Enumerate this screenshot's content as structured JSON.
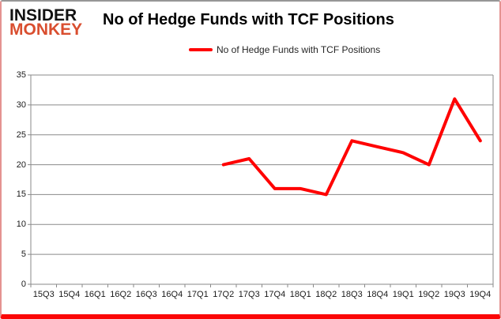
{
  "logo": {
    "line1": "INSIDER",
    "line2": "MONKEY",
    "line2_color": "#d94e2f"
  },
  "header": {
    "title": "No of Hedge Funds with TCF Positions"
  },
  "chart_data": {
    "type": "line",
    "title": "No of Hedge Funds with TCF Positions",
    "legend_label": "No of Hedge Funds with TCF Positions",
    "legend_position": "top",
    "categories": [
      "15Q3",
      "15Q4",
      "16Q1",
      "16Q2",
      "16Q3",
      "16Q4",
      "17Q1",
      "17Q2",
      "17Q3",
      "17Q4",
      "18Q1",
      "18Q2",
      "18Q3",
      "18Q4",
      "19Q1",
      "19Q2",
      "19Q3",
      "19Q4"
    ],
    "series": [
      {
        "name": "No of Hedge Funds with TCF Positions",
        "values": [
          null,
          null,
          null,
          null,
          null,
          null,
          null,
          20,
          21,
          16,
          16,
          15,
          24,
          23,
          22,
          20,
          31,
          24
        ]
      }
    ],
    "xlabel": "",
    "ylabel": "",
    "ylim": [
      0,
      35
    ],
    "yticks": [
      0,
      5,
      10,
      15,
      20,
      25,
      30,
      35
    ],
    "grid": true,
    "colors": {
      "line": "#ff0000",
      "grid": "#8a8a8a",
      "axis": "#8a8a8a",
      "text": "#1a1a1a"
    }
  }
}
